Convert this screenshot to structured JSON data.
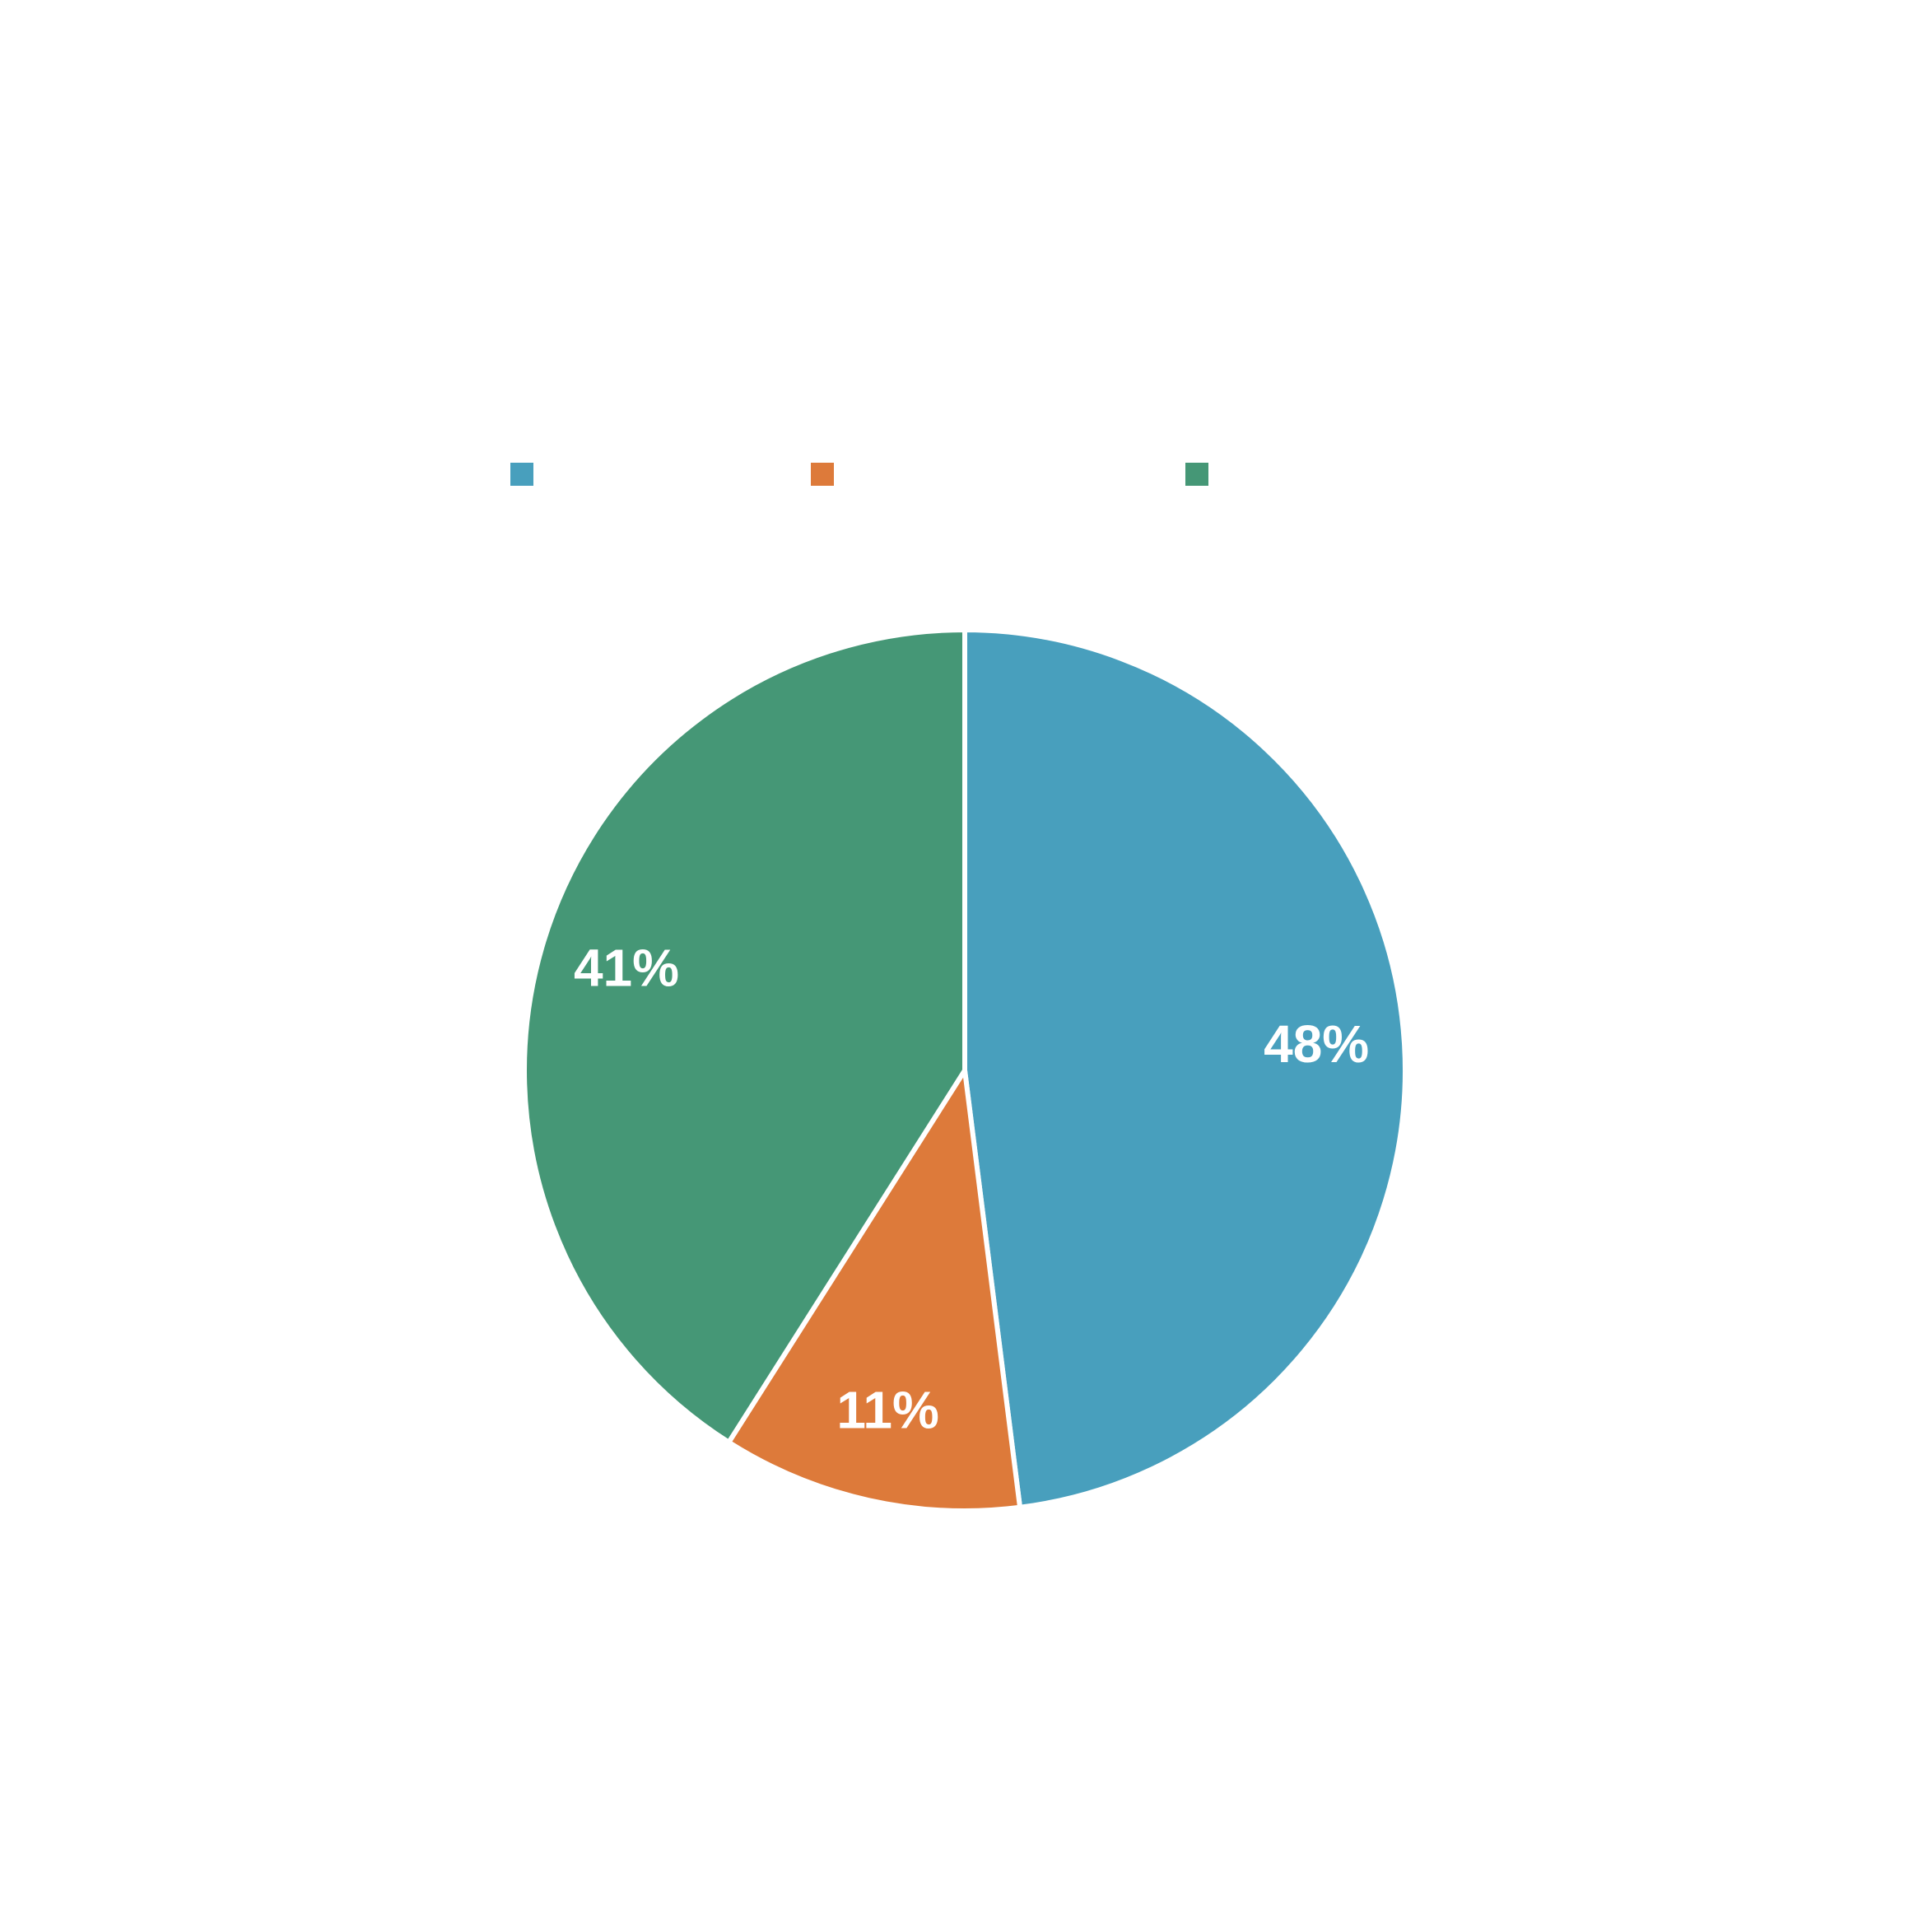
{
  "chart_data": {
    "type": "pie",
    "title": "",
    "categories": [
      "",
      "",
      ""
    ],
    "values": [
      48,
      11,
      41
    ],
    "labels": [
      "48%",
      "11%",
      "41%"
    ],
    "colors": [
      "#489fbd",
      "#dd7a3a",
      "#459776"
    ],
    "legend_position": "top",
    "start_angle_deg": 0,
    "direction": "clockwise"
  }
}
